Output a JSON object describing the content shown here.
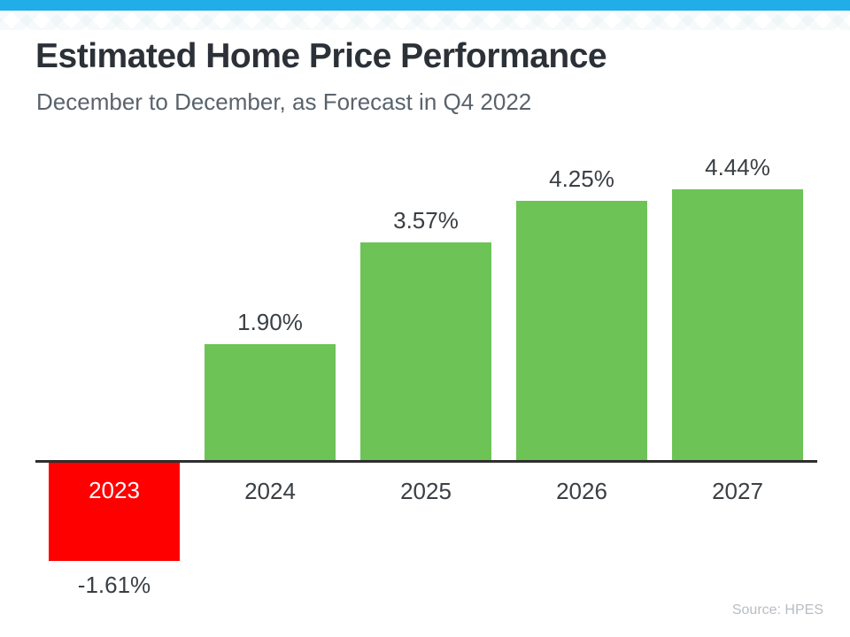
{
  "page": {
    "title": "Estimated Home Price Performance",
    "subtitle": "December to December, as Forecast in Q4 2022",
    "source": "Source: HPES"
  },
  "colors": {
    "accent_blue": "#20ADE8",
    "bar_positive": "#6DC356",
    "bar_negative": "#FE0000",
    "axis": "#2E2E2E",
    "title_text": "#2B3137",
    "subtitle_text": "#5A636B",
    "label_text": "#3A3F44",
    "source_text": "#B8BDC3"
  },
  "chart_data": {
    "type": "bar",
    "title": "Estimated Home Price Performance",
    "subtitle": "December to December, as Forecast in Q4 2022",
    "categories": [
      "2023",
      "2024",
      "2025",
      "2026",
      "2027"
    ],
    "values": [
      -1.61,
      1.9,
      3.57,
      4.25,
      4.44
    ],
    "value_labels": [
      "-1.61%",
      "1.90%",
      "3.57%",
      "4.25%",
      "4.44%"
    ],
    "xlabel": "",
    "ylabel": "",
    "ylim": [
      -2,
      5
    ],
    "grid": false,
    "legend": false,
    "bar_color_positive": "#6DC356",
    "bar_color_negative": "#FE0000",
    "source": "Source: HPES"
  }
}
